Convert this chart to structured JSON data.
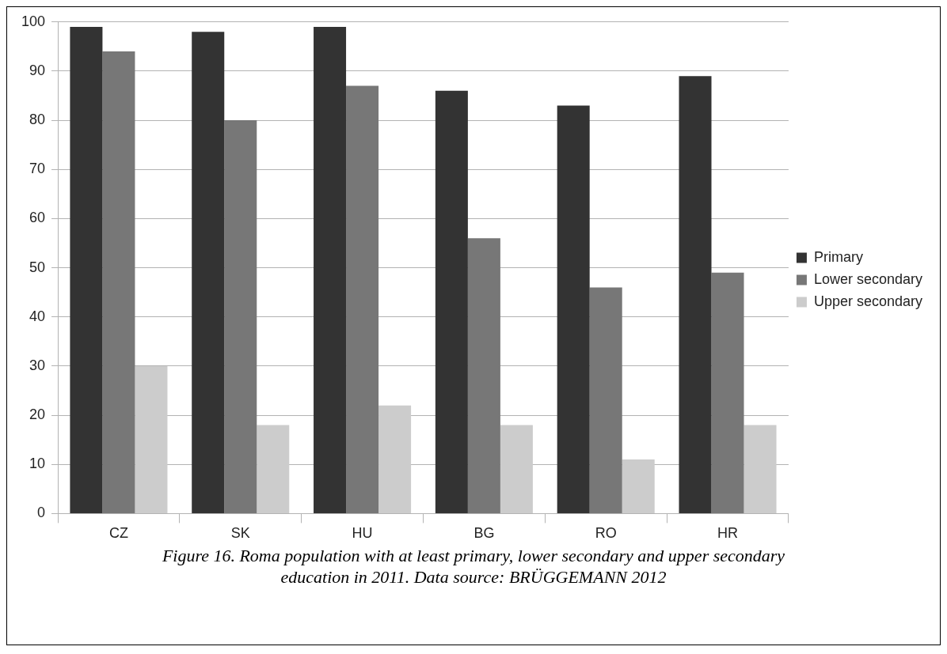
{
  "chart_data": {
    "type": "bar",
    "categories": [
      "CZ",
      "SK",
      "HU",
      "BG",
      "RO",
      "HR"
    ],
    "series": [
      {
        "name": "Primary",
        "color": "#333333",
        "values": [
          99,
          98,
          99,
          86,
          83,
          89
        ]
      },
      {
        "name": "Lower secondary",
        "color": "#777777",
        "values": [
          94,
          80,
          87,
          56,
          46,
          49
        ]
      },
      {
        "name": "Upper secondary",
        "color": "#cccccc",
        "values": [
          30,
          18,
          22,
          18,
          11,
          18
        ]
      }
    ],
    "ylim": [
      0,
      100
    ],
    "yticks": [
      0,
      10,
      20,
      30,
      40,
      50,
      60,
      70,
      80,
      90,
      100
    ],
    "grid": "y",
    "legend": "right",
    "annotations": [
      "Figure 16. Roma population with at least primary, lower secondary and upper secondary education in 2011. Data source: BRÜGGEMANN 2012"
    ]
  }
}
